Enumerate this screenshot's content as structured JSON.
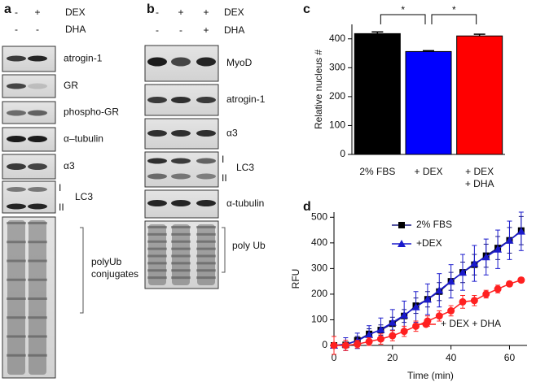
{
  "panels": {
    "a": {
      "label": "a",
      "conditions": [
        {
          "name": "DEX",
          "signs": [
            "-",
            "+"
          ]
        },
        {
          "name": "DHA",
          "signs": [
            "-",
            "-"
          ]
        }
      ],
      "blots": [
        {
          "name": "atrogin-1"
        },
        {
          "name": "GR"
        },
        {
          "name": "phospho-GR"
        },
        {
          "name": "α–tubulin"
        },
        {
          "name": "α3"
        },
        {
          "name": "LC3",
          "bands": [
            "I",
            "II"
          ]
        },
        {
          "name": "polyUb\nconjugates"
        }
      ]
    },
    "b": {
      "label": "b",
      "conditions": [
        {
          "name": "DEX",
          "signs": [
            "-",
            "+",
            "+"
          ]
        },
        {
          "name": "DHA",
          "signs": [
            "-",
            "-",
            "+"
          ]
        }
      ],
      "blots": [
        {
          "name": "MyoD"
        },
        {
          "name": "atrogin-1"
        },
        {
          "name": "α3"
        },
        {
          "name": "LC3",
          "bands": [
            "I",
            "II"
          ]
        },
        {
          "name": "α-tubulin"
        },
        {
          "name": "poly Ub"
        }
      ]
    },
    "c": {
      "label": "c"
    },
    "d": {
      "label": "d"
    }
  },
  "chart_data": [
    {
      "type": "bar",
      "y_label": "Relative nucleus #",
      "categories": [
        "2% FBS",
        "+ DEX",
        "+ DEX\n+ DHA"
      ],
      "values": [
        418,
        356,
        410
      ],
      "errors": [
        6,
        3,
        6
      ],
      "colors": [
        "#000000",
        "#0000ff",
        "#ff0000"
      ],
      "ylim": [
        0,
        450
      ],
      "yticks": [
        0,
        100,
        200,
        300,
        400
      ],
      "annotations": [
        "*",
        "*"
      ]
    },
    {
      "type": "line",
      "x_label": "Time (min)",
      "y_label": "RFU",
      "x": [
        0,
        4,
        8,
        12,
        16,
        20,
        24,
        28,
        32,
        36,
        40,
        44,
        48,
        52,
        56,
        60,
        64
      ],
      "series": [
        {
          "name": "2% FBS",
          "color": "#000000",
          "line_color": "#1a1a80",
          "marker": "square",
          "values": [
            0,
            2,
            20,
            45,
            60,
            85,
            115,
            155,
            180,
            210,
            250,
            285,
            315,
            350,
            380,
            410,
            448
          ],
          "errors": [
            0,
            10,
            15,
            20,
            20,
            25,
            25,
            30,
            30,
            35,
            35,
            40,
            40,
            45,
            45,
            50,
            55
          ]
        },
        {
          "name": "+DEX",
          "color": "#1a1acc",
          "line_color": "#1a1acc",
          "marker": "triangle",
          "values": [
            0,
            5,
            18,
            42,
            62,
            90,
            118,
            150,
            180,
            215,
            250,
            285,
            320,
            345,
            375,
            410,
            445
          ],
          "errors": [
            0,
            25,
            30,
            35,
            45,
            50,
            55,
            60,
            60,
            65,
            65,
            70,
            70,
            70,
            75,
            75,
            75
          ]
        },
        {
          "name": "+ DEX + DHA",
          "color": "#ff2020",
          "line_color": "#ff2020",
          "marker": "circle",
          "values": [
            0,
            0,
            5,
            15,
            25,
            38,
            55,
            75,
            95,
            115,
            135,
            170,
            175,
            200,
            220,
            240,
            255
          ],
          "errors": [
            35,
            20,
            15,
            15,
            20,
            20,
            20,
            20,
            20,
            20,
            20,
            25,
            20,
            15,
            15,
            10,
            10
          ]
        }
      ],
      "xlim": [
        0,
        66
      ],
      "xticks": [
        0,
        20,
        40,
        60
      ],
      "ylim": [
        0,
        520
      ],
      "yticks": [
        0,
        100,
        200,
        300,
        400,
        500
      ]
    }
  ]
}
